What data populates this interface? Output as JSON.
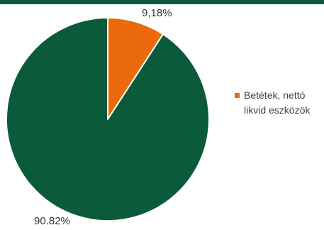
{
  "colors": {
    "top_band": "#0b5a3c",
    "slice_green": "#0b5a3c",
    "slice_orange": "#ea6a0c",
    "slice_border": "#ffffff"
  },
  "chart_data": {
    "type": "pie",
    "start_angle_deg": 0,
    "direction": "clockwise",
    "slices": [
      {
        "name": "Betétek, nettó likvid eszközök",
        "value": 9.18,
        "label": "9,18%",
        "color": "#ea6a0c"
      },
      {
        "value": 90.82,
        "label": "90.82%",
        "color": "#0b5a3c"
      }
    ],
    "legend": {
      "placement": "right",
      "entries": [
        {
          "line1": "Betétek, nettó",
          "line2": "likvid eszközök",
          "color": "#ea6a0c"
        }
      ]
    }
  }
}
